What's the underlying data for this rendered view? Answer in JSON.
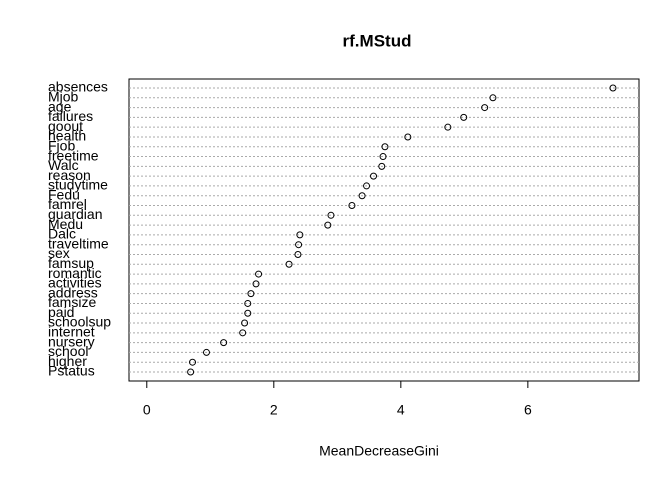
{
  "chart_data": {
    "type": "dot",
    "title": "rf.MStud",
    "x_label": "MeanDecreaseGini",
    "categories": [
      "absences",
      "Mjob",
      "age",
      "failures",
      "goout",
      "health",
      "Fjob",
      "freetime",
      "Walc",
      "reason",
      "studytime",
      "Fedu",
      "famrel",
      "guardian",
      "Medu",
      "Dalc",
      "traveltime",
      "sex",
      "famsup",
      "romantic",
      "activities",
      "address",
      "famsize",
      "paid",
      "schoolsup",
      "internet",
      "nursery",
      "school",
      "higher",
      "Pstatus"
    ],
    "values": [
      7.34,
      5.45,
      5.32,
      4.99,
      4.74,
      4.11,
      3.75,
      3.72,
      3.7,
      3.57,
      3.46,
      3.39,
      3.23,
      2.9,
      2.85,
      2.41,
      2.39,
      2.38,
      2.24,
      1.76,
      1.72,
      1.64,
      1.59,
      1.59,
      1.54,
      1.51,
      1.21,
      0.94,
      0.72,
      0.69
    ],
    "color": "#000000",
    "xlim": [
      -0.28,
      7.75
    ],
    "xticks": [
      0,
      2,
      4,
      6
    ],
    "grid": true
  }
}
